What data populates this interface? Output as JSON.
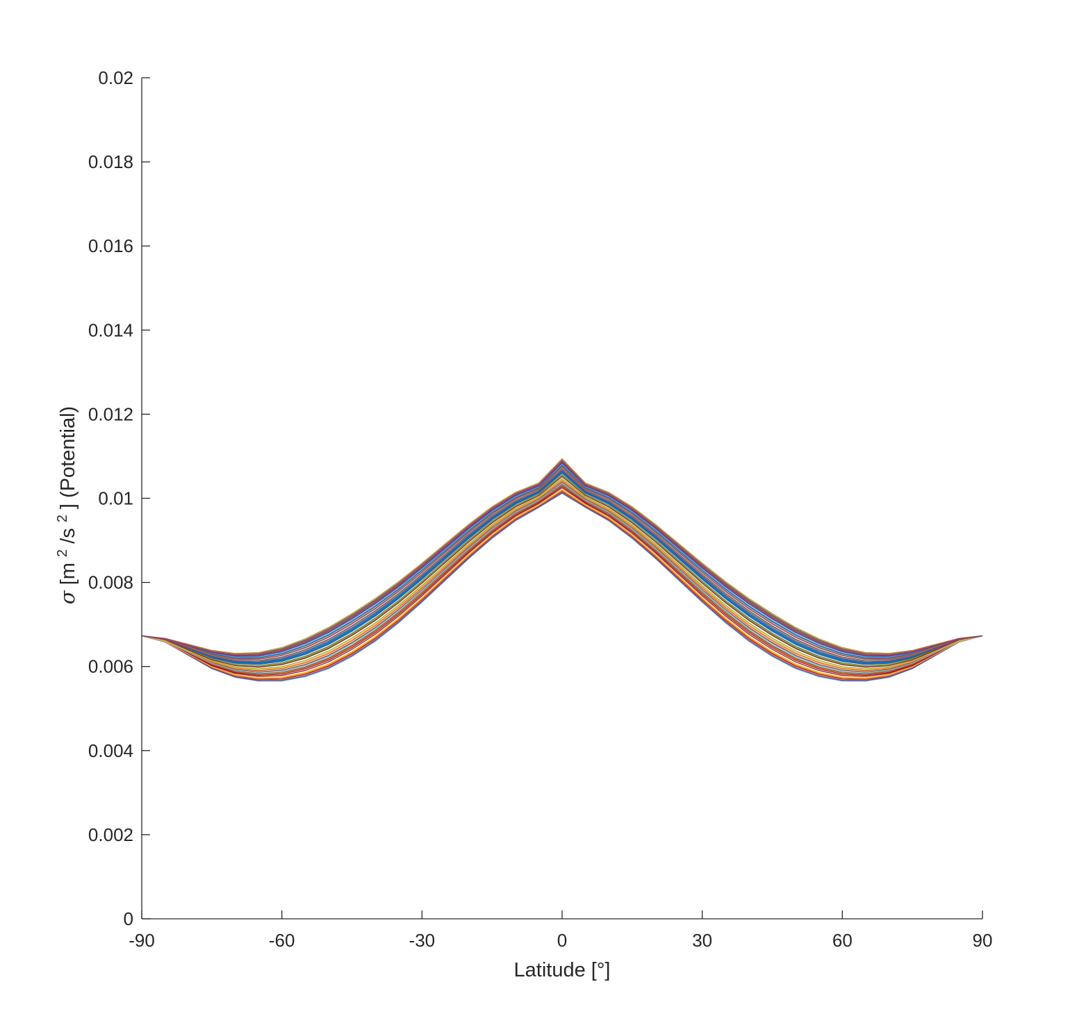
{
  "chart_data": {
    "type": "line",
    "title": "",
    "xlabel": "Latitude [°]",
    "ylabel": {
      "symbol": "σ",
      "parts": [
        " [m",
        "2",
        "/s",
        "2",
        "] (Potential)"
      ]
    },
    "xlim": [
      -90,
      90
    ],
    "ylim": [
      0,
      0.02
    ],
    "xticks": [
      -90,
      -60,
      -30,
      0,
      30,
      60,
      90
    ],
    "xtick_labels": [
      "-90",
      "-60",
      "-30",
      "0",
      "30",
      "60",
      "90"
    ],
    "yticks": [
      0,
      0.002,
      0.004,
      0.006,
      0.008,
      0.01,
      0.012,
      0.014,
      0.016,
      0.018,
      0.02
    ],
    "ytick_labels": [
      "0",
      "0.002",
      "0.004",
      "0.006",
      "0.008",
      "0.01",
      "0.012",
      "0.014",
      "0.016",
      "0.018",
      "0.02"
    ],
    "grid": false,
    "legend": "none",
    "series_colors": [
      "#0072BD",
      "#D95319",
      "#EDB120",
      "#7E2F8E",
      "#77AC30",
      "#4DBEEE",
      "#A2142F"
    ],
    "series_count": 60,
    "x": [
      -90,
      -85,
      -80,
      -75,
      -70,
      -65,
      -60,
      -55,
      -50,
      -45,
      -40,
      -35,
      -30,
      -25,
      -20,
      -15,
      -10,
      -5,
      0,
      5,
      10,
      15,
      20,
      25,
      30,
      35,
      40,
      45,
      50,
      55,
      60,
      65,
      70,
      75,
      80,
      85,
      90
    ],
    "envelope_upper": [
      0.00673,
      0.00667,
      0.00653,
      0.00639,
      0.00632,
      0.00634,
      0.00646,
      0.00667,
      0.00694,
      0.00727,
      0.00763,
      0.00803,
      0.00847,
      0.00893,
      0.00939,
      0.00981,
      0.01015,
      0.01037,
      0.01095,
      0.01037,
      0.01015,
      0.00981,
      0.00939,
      0.00893,
      0.00847,
      0.00803,
      0.00763,
      0.00727,
      0.00694,
      0.00667,
      0.00646,
      0.00634,
      0.00632,
      0.00639,
      0.00653,
      0.00667,
      0.00673
    ],
    "envelope_lower": [
      0.00673,
      0.00658,
      0.00626,
      0.00594,
      0.00573,
      0.00564,
      0.00564,
      0.00574,
      0.00593,
      0.00622,
      0.00658,
      0.00702,
      0.00751,
      0.00803,
      0.00855,
      0.00903,
      0.00945,
      0.00977,
      0.0101,
      0.00977,
      0.00945,
      0.00903,
      0.00855,
      0.00803,
      0.00751,
      0.00702,
      0.00658,
      0.00622,
      0.00593,
      0.00574,
      0.00564,
      0.00564,
      0.00573,
      0.00594,
      0.00626,
      0.00658,
      0.00673
    ]
  }
}
